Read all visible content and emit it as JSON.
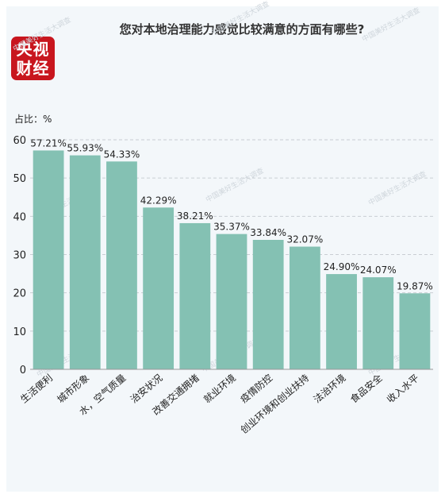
{
  "header": {
    "title": "您对本地治理能力感觉比较满意的方面有哪些?",
    "logo_line1": "央视",
    "logo_line2": "财经",
    "watermark": "中国美好生活大调查"
  },
  "colors": {
    "bar": "#84c1b3",
    "logo": "#c8161e",
    "grid": "#c9ced3"
  },
  "chart_data": {
    "type": "bar",
    "title": "您对本地治理能力感觉比较满意的方面有哪些?",
    "ylabel": "占比：%",
    "xlabel": "",
    "ylim": [
      0,
      60
    ],
    "yticks": [
      0,
      10,
      20,
      30,
      40,
      50,
      60
    ],
    "grid": true,
    "categories": [
      "生活便利",
      "城市形象",
      "水，空气质量",
      "治安状况",
      "改善交通拥堵",
      "就业环境",
      "疫情防控",
      "创业环境和创业扶持",
      "法治环境",
      "食品安全",
      "收入水平"
    ],
    "values": [
      57.21,
      55.93,
      54.33,
      42.29,
      38.21,
      35.37,
      33.84,
      32.07,
      24.9,
      24.07,
      19.87
    ],
    "value_labels": [
      "57.21%",
      "55.93%",
      "54.33%",
      "42.29%",
      "38.21%",
      "35.37%",
      "33.84%",
      "32.07%",
      "24.90%",
      "24.07%",
      "19.87%"
    ]
  }
}
